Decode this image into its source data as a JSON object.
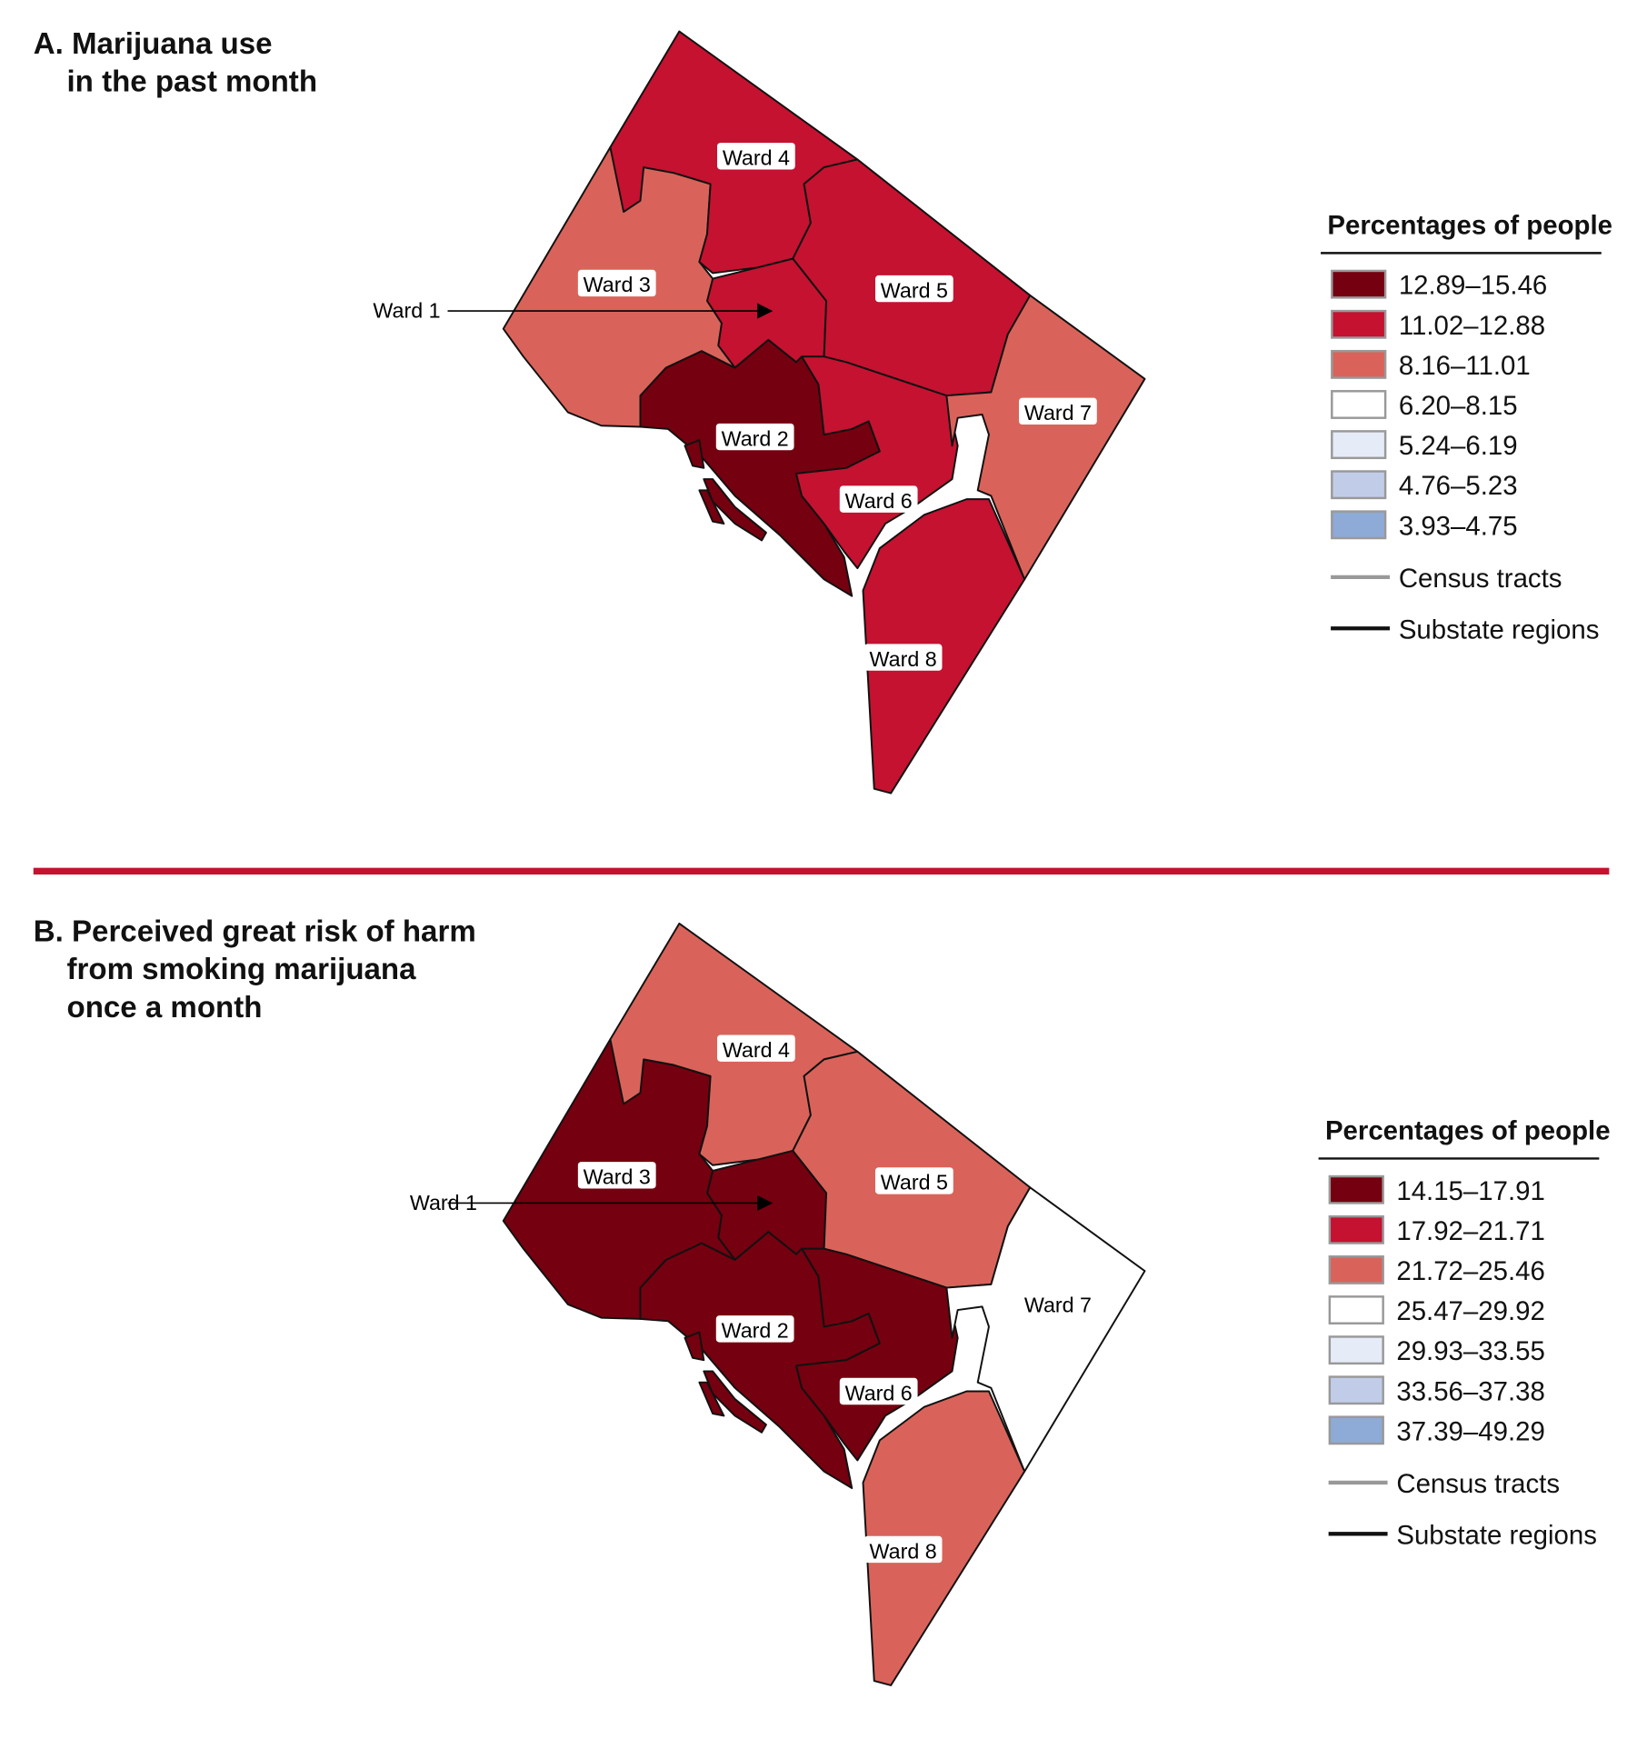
{
  "panels": [
    {
      "title_line1": "A. Marijuana use",
      "title_line2": "in the past month",
      "title_line3": "",
      "legend": {
        "title": "Percentages of people",
        "bins": [
          {
            "label": "12.89–15.46",
            "color": "#75000f"
          },
          {
            "label": "11.02–12.88",
            "color": "#c41230"
          },
          {
            "label": "8.16–11.01",
            "color": "#d9635a"
          },
          {
            "label": "6.20–8.15",
            "color": "#ffffff"
          },
          {
            "label": "5.24–6.19",
            "color": "#e5ecf7"
          },
          {
            "label": "4.76–5.23",
            "color": "#c1cde8"
          },
          {
            "label": "3.93–4.75",
            "color": "#8eaad6"
          }
        ],
        "lines": [
          {
            "label": "Census tracts",
            "color": "#999999"
          },
          {
            "label": "Substate regions",
            "color": "#111111"
          }
        ]
      },
      "regions": [
        {
          "label": "Ward 1",
          "bin": 1
        },
        {
          "label": "Ward 2",
          "bin": 0
        },
        {
          "label": "Ward 3",
          "bin": 2
        },
        {
          "label": "Ward 4",
          "bin": 1
        },
        {
          "label": "Ward 5",
          "bin": 1
        },
        {
          "label": "Ward 6",
          "bin": 1
        },
        {
          "label": "Ward 7",
          "bin": 2
        },
        {
          "label": "Ward 8",
          "bin": 1
        }
      ]
    },
    {
      "title_line1": "B. Perceived great risk of harm",
      "title_line2": "from smoking marijuana",
      "title_line3": "once a month",
      "legend": {
        "title": "Percentages of people",
        "bins": [
          {
            "label": "14.15–17.91",
            "color": "#75000f"
          },
          {
            "label": "17.92–21.71",
            "color": "#c41230"
          },
          {
            "label": "21.72–25.46",
            "color": "#d9635a"
          },
          {
            "label": "25.47–29.92",
            "color": "#ffffff"
          },
          {
            "label": "29.93–33.55",
            "color": "#e5ecf7"
          },
          {
            "label": "33.56–37.38",
            "color": "#c1cde8"
          },
          {
            "label": "37.39–49.29",
            "color": "#8eaad6"
          }
        ],
        "lines": [
          {
            "label": "Census tracts",
            "color": "#999999"
          },
          {
            "label": "Substate regions",
            "color": "#111111"
          }
        ]
      },
      "regions": [
        {
          "label": "Ward 1",
          "bin": 0
        },
        {
          "label": "Ward 2",
          "bin": 0
        },
        {
          "label": "Ward 3",
          "bin": 0
        },
        {
          "label": "Ward 4",
          "bin": 2
        },
        {
          "label": "Ward 5",
          "bin": 2
        },
        {
          "label": "Ward 6",
          "bin": 0
        },
        {
          "label": "Ward 7",
          "bin": 3
        },
        {
          "label": "Ward 8",
          "bin": 2
        }
      ]
    }
  ],
  "divider_color": "#c41230"
}
